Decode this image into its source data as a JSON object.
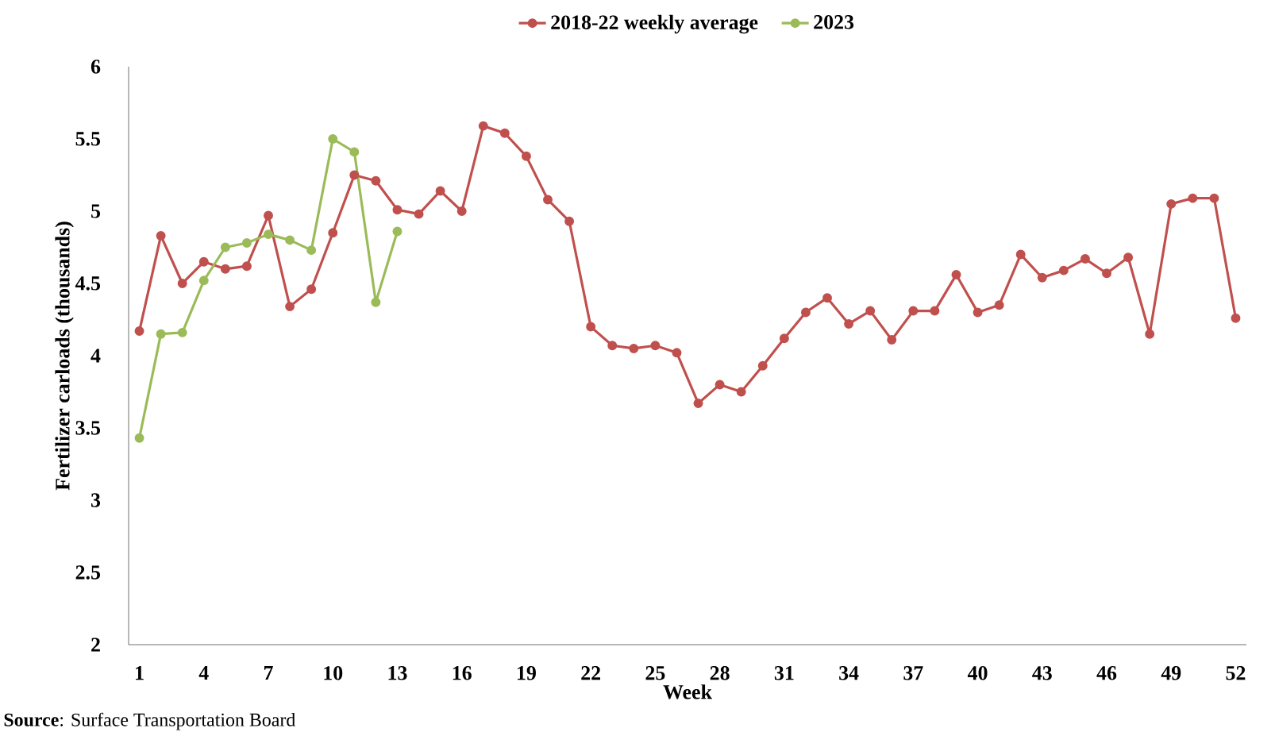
{
  "chart_data": {
    "type": "line",
    "xlabel": "Week",
    "ylabel": "Fertilizer carloads (thousands)",
    "annotations": [
      "**Source**: Surface Transportation Board"
    ],
    "x": [
      1,
      2,
      3,
      4,
      5,
      6,
      7,
      8,
      9,
      10,
      11,
      12,
      13,
      14,
      15,
      16,
      17,
      18,
      19,
      20,
      21,
      22,
      23,
      24,
      25,
      26,
      27,
      28,
      29,
      30,
      31,
      32,
      33,
      34,
      35,
      36,
      37,
      38,
      39,
      40,
      41,
      42,
      43,
      44,
      45,
      46,
      47,
      48,
      49,
      50,
      51,
      52
    ],
    "xlim": [
      0.5,
      52.5
    ],
    "xticks": [
      1,
      4,
      7,
      10,
      13,
      16,
      19,
      22,
      25,
      28,
      31,
      34,
      37,
      40,
      43,
      46,
      49,
      52
    ],
    "ylim": [
      2,
      6
    ],
    "yticks": [
      2,
      2.5,
      3,
      3.5,
      4,
      4.5,
      5,
      5.5,
      6
    ],
    "grid": false,
    "legend": "top",
    "marker": "circle",
    "line_style": "solid",
    "series": [
      {
        "name": "2018-22 weekly average",
        "color": "#c0504d",
        "values": [
          4.17,
          4.83,
          4.5,
          4.65,
          4.6,
          4.62,
          4.97,
          4.34,
          4.46,
          4.85,
          5.25,
          5.21,
          5.01,
          4.98,
          5.14,
          5.0,
          5.59,
          5.54,
          5.38,
          5.08,
          4.93,
          4.2,
          4.07,
          4.05,
          4.07,
          4.02,
          3.67,
          3.8,
          3.75,
          3.93,
          4.12,
          4.3,
          4.4,
          4.22,
          4.31,
          4.11,
          4.31,
          4.31,
          4.56,
          4.3,
          4.35,
          4.7,
          4.54,
          4.59,
          4.67,
          4.57,
          4.68,
          4.15,
          5.05,
          5.09,
          5.09,
          4.26
        ]
      },
      {
        "name": "2023",
        "color": "#9bbb59",
        "x": [
          1,
          2,
          3,
          4,
          5,
          6,
          7,
          8,
          9,
          10,
          11,
          12,
          13
        ],
        "values": [
          3.43,
          4.15,
          4.16,
          4.52,
          4.75,
          4.78,
          4.84,
          4.8,
          4.73,
          5.5,
          5.41,
          4.37,
          4.86
        ]
      }
    ]
  }
}
